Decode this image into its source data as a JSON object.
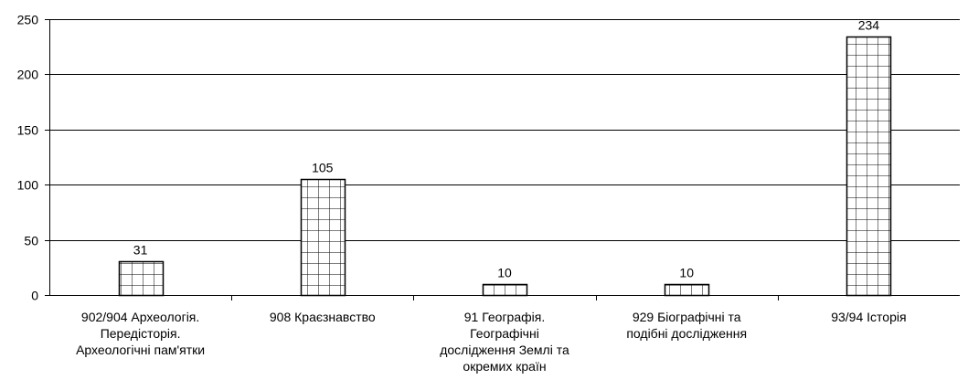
{
  "chart_data": {
    "type": "bar",
    "categories": [
      [
        "902/904 Археологія.",
        "Передісторія.",
        "Археологічні пам'ятки"
      ],
      [
        "908 Краєзнавство"
      ],
      [
        "91 Географія.",
        "Географічні",
        "дослідження Землі та",
        "окремих країн"
      ],
      [
        "929 Біографічні та",
        "подібні дослідження"
      ],
      [
        "93/94 Історія"
      ]
    ],
    "values": [
      31,
      105,
      10,
      10,
      234
    ],
    "data_labels": [
      "31",
      "105",
      "10",
      "10",
      "234"
    ],
    "ylim": [
      0,
      250
    ],
    "yticks": [
      0,
      50,
      100,
      150,
      200,
      250
    ],
    "ytick_labels": [
      "0",
      "50",
      "100",
      "150",
      "200",
      "250"
    ],
    "grid": true,
    "bar_pattern": "grid-hatch",
    "colors": {
      "bar_fill": "#ffffff",
      "bar_stroke": "#000000",
      "gridline": "#000000"
    }
  }
}
